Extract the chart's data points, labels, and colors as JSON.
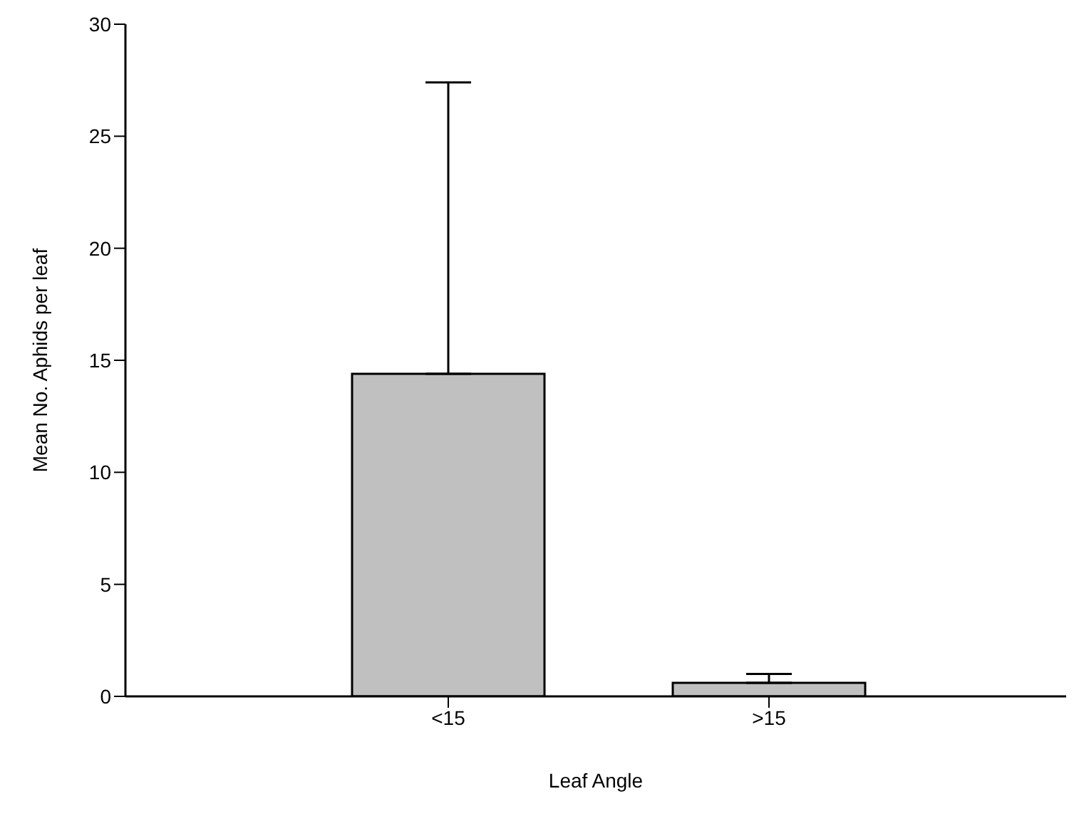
{
  "chart_data": {
    "type": "bar",
    "xlabel": "Leaf Angle",
    "ylabel": "Mean No. Aphids per leaf",
    "categories": [
      "<15",
      ">15"
    ],
    "values": [
      14.4,
      0.6
    ],
    "errors": [
      [
        14.4,
        27.4
      ],
      [
        0.6,
        1.0
      ]
    ],
    "color": "#c0c0c0",
    "ylim": [
      0,
      30
    ],
    "yticks": [
      0,
      5,
      10,
      15,
      20,
      25,
      30
    ],
    "grid": false,
    "legend": false
  }
}
